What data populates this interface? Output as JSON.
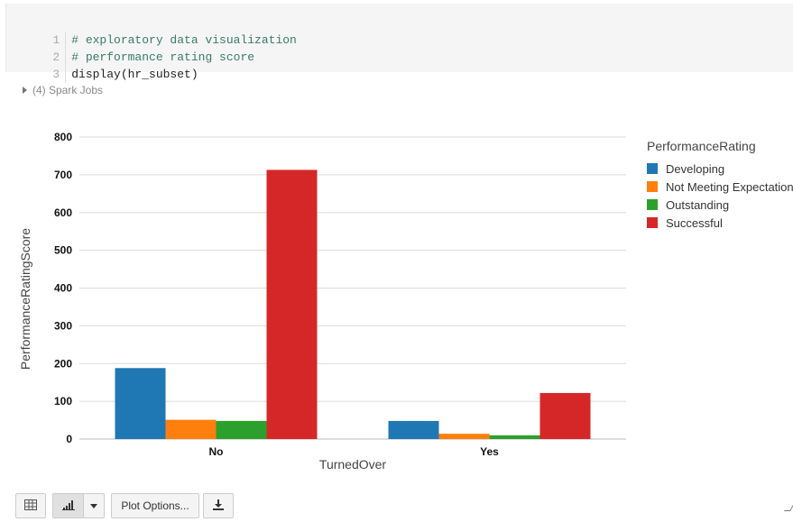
{
  "code": {
    "lines": [
      {
        "num": "1",
        "text": "# exploratory data visualization",
        "kind": "comment"
      },
      {
        "num": "2",
        "text": "# performance rating score",
        "kind": "comment"
      },
      {
        "num": "3",
        "text": "display(hr_subset)",
        "kind": "plain"
      }
    ]
  },
  "spark_jobs": {
    "label": "(4) Spark Jobs"
  },
  "chart_data": {
    "type": "bar",
    "categories": [
      "No",
      "Yes"
    ],
    "series": [
      {
        "name": "Developing",
        "values": [
          188,
          48
        ],
        "color": "#1f77b4"
      },
      {
        "name": "Not Meeting Expectations",
        "values": [
          51,
          14
        ],
        "color": "#ff7f0e"
      },
      {
        "name": "Outstanding",
        "values": [
          48,
          10
        ],
        "color": "#2ca02c"
      },
      {
        "name": "Successful",
        "values": [
          713,
          122
        ],
        "color": "#d62728"
      }
    ],
    "xlabel": "TurnedOver",
    "ylabel": "PerformanceRatingScore",
    "ylim": [
      0,
      800
    ],
    "yticks": [
      "0",
      "100",
      "200",
      "300",
      "400",
      "500",
      "600",
      "700",
      "800"
    ],
    "legend_title": "PerformanceRating",
    "legend_position": "right",
    "grid": true
  },
  "toolbar": {
    "table_icon": "table-icon",
    "bar_icon": "bar-chart-icon",
    "dropdown_icon": "chevron-down-icon",
    "plot_options_label": "Plot Options...",
    "download_icon": "download-icon"
  }
}
